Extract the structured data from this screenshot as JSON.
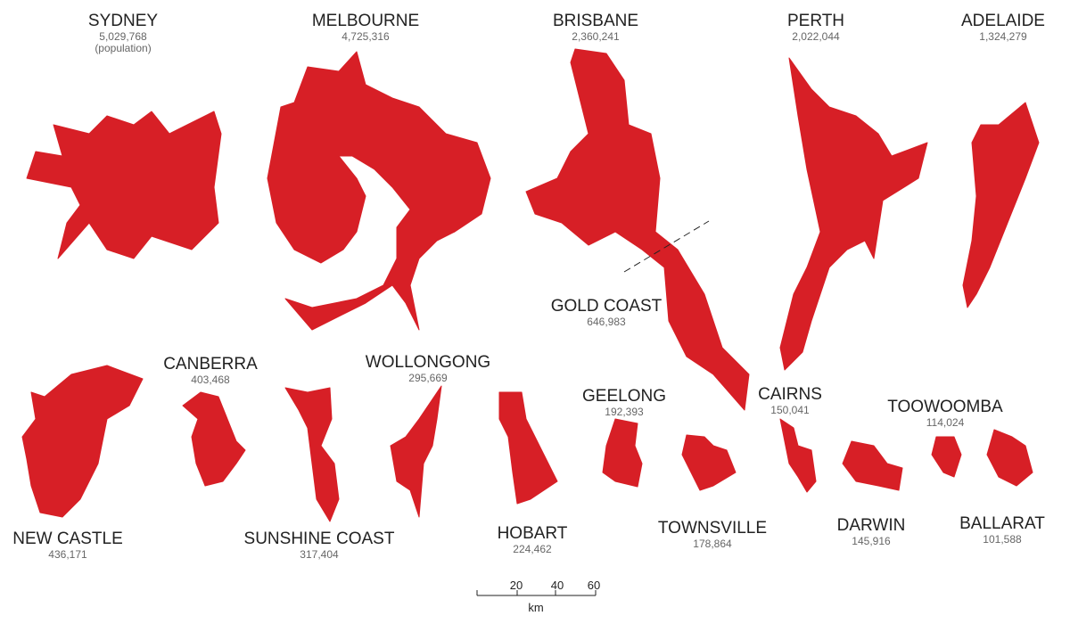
{
  "cities": [
    {
      "name": "SYDNEY",
      "population": "5,029,768",
      "note": "(population)"
    },
    {
      "name": "MELBOURNE",
      "population": "4,725,316"
    },
    {
      "name": "BRISBANE",
      "population": "2,360,241"
    },
    {
      "name": "PERTH",
      "population": "2,022,044"
    },
    {
      "name": "ADELAIDE",
      "population": "1,324,279"
    },
    {
      "name": "GOLD COAST",
      "population": "646,983"
    },
    {
      "name": "CANBERRA",
      "population": "403,468"
    },
    {
      "name": "WOLLONGONG",
      "population": "295,669"
    },
    {
      "name": "GEELONG",
      "population": "192,393"
    },
    {
      "name": "CAIRNS",
      "population": "150,041"
    },
    {
      "name": "TOOWOOMBA",
      "population": "114,024"
    },
    {
      "name": "NEW CASTLE",
      "population": "436,171"
    },
    {
      "name": "SUNSHINE COAST",
      "population": "317,404"
    },
    {
      "name": "HOBART",
      "population": "224,462"
    },
    {
      "name": "TOWNSVILLE",
      "population": "178,864"
    },
    {
      "name": "DARWIN",
      "population": "145,916"
    },
    {
      "name": "BALLARAT",
      "population": "101,588"
    }
  ],
  "scale": {
    "ticks": [
      "20",
      "40",
      "60"
    ],
    "unit": "km"
  }
}
